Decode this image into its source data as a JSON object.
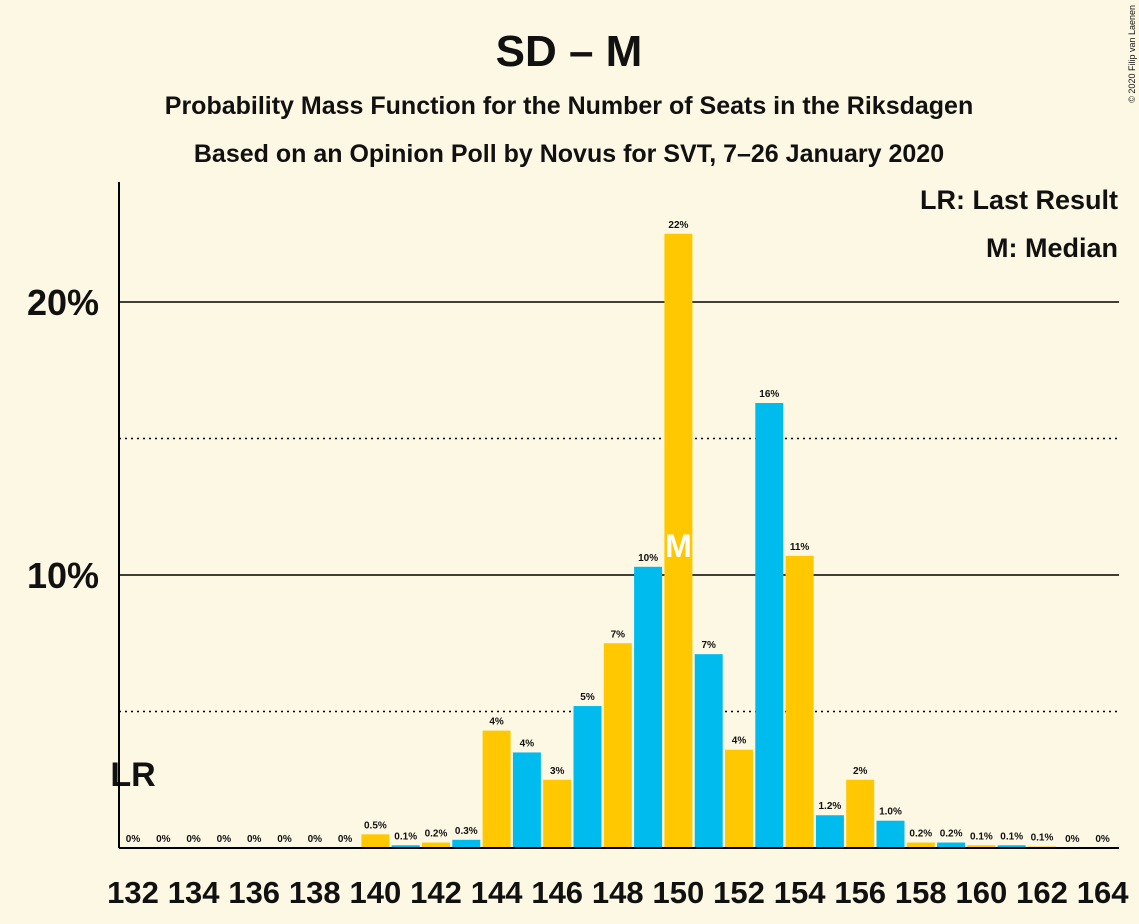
{
  "chart_data": {
    "type": "bar",
    "title": "SD – M",
    "subtitle": "Probability Mass Function for the Number of Seats in the Riksdagen",
    "subtitle2": "Based on an Opinion Poll by Novus for SVT, 7–26 January 2020",
    "copyright": "© 2020 Filip van Laenen",
    "legend": {
      "lr": "LR: Last Result",
      "m": "M: Median",
      "placement": "top-right"
    },
    "lr_marker": {
      "label": "LR",
      "seats": 132
    },
    "median_marker": {
      "label": "M",
      "seats": 150
    },
    "ylim": [
      0,
      24.5
    ],
    "yticks": [
      {
        "value": 10,
        "label": "10%"
      },
      {
        "value": 20,
        "label": "20%"
      }
    ],
    "solid_gridlines": [
      10,
      20
    ],
    "dotted_gridlines": [
      5,
      15
    ],
    "x_tick_labels": [
      "132",
      "134",
      "136",
      "138",
      "140",
      "142",
      "144",
      "146",
      "148",
      "150",
      "152",
      "154",
      "156",
      "158",
      "160",
      "162",
      "164"
    ],
    "colors": {
      "odd": "#ffc800",
      "even": "#00bbee",
      "background": "#fdf8e4"
    },
    "series": [
      {
        "seats": 132,
        "value": 0,
        "label": "0%"
      },
      {
        "seats": 133,
        "value": 0,
        "label": "0%"
      },
      {
        "seats": 134,
        "value": 0,
        "label": "0%"
      },
      {
        "seats": 135,
        "value": 0,
        "label": "0%"
      },
      {
        "seats": 136,
        "value": 0,
        "label": "0%"
      },
      {
        "seats": 137,
        "value": 0,
        "label": "0%"
      },
      {
        "seats": 138,
        "value": 0,
        "label": "0%"
      },
      {
        "seats": 139,
        "value": 0,
        "label": "0%"
      },
      {
        "seats": 140,
        "value": 0.5,
        "label": "0.5%"
      },
      {
        "seats": 141,
        "value": 0.1,
        "label": "0.1%"
      },
      {
        "seats": 142,
        "value": 0.2,
        "label": "0.2%"
      },
      {
        "seats": 143,
        "value": 0.3,
        "label": "0.3%"
      },
      {
        "seats": 144,
        "value": 4.3,
        "label": "4%"
      },
      {
        "seats": 145,
        "value": 3.5,
        "label": "4%"
      },
      {
        "seats": 146,
        "value": 2.5,
        "label": "3%"
      },
      {
        "seats": 147,
        "value": 5.2,
        "label": "5%"
      },
      {
        "seats": 148,
        "value": 7.5,
        "label": "7%"
      },
      {
        "seats": 149,
        "value": 10.3,
        "label": "10%"
      },
      {
        "seats": 150,
        "value": 22.5,
        "label": "22%"
      },
      {
        "seats": 151,
        "value": 7.1,
        "label": "7%"
      },
      {
        "seats": 152,
        "value": 3.6,
        "label": "4%"
      },
      {
        "seats": 153,
        "value": 16.3,
        "label": "16%"
      },
      {
        "seats": 154,
        "value": 10.7,
        "label": "11%"
      },
      {
        "seats": 155,
        "value": 1.2,
        "label": "1.2%"
      },
      {
        "seats": 156,
        "value": 2.5,
        "label": "2%"
      },
      {
        "seats": 157,
        "value": 1.0,
        "label": "1.0%"
      },
      {
        "seats": 158,
        "value": 0.2,
        "label": "0.2%"
      },
      {
        "seats": 159,
        "value": 0.2,
        "label": "0.2%"
      },
      {
        "seats": 160,
        "value": 0.1,
        "label": "0.1%"
      },
      {
        "seats": 161,
        "value": 0.1,
        "label": "0.1%"
      },
      {
        "seats": 162,
        "value": 0.05,
        "label": "0.1%"
      },
      {
        "seats": 163,
        "value": 0,
        "label": "0%"
      },
      {
        "seats": 164,
        "value": 0,
        "label": "0%"
      }
    ]
  }
}
